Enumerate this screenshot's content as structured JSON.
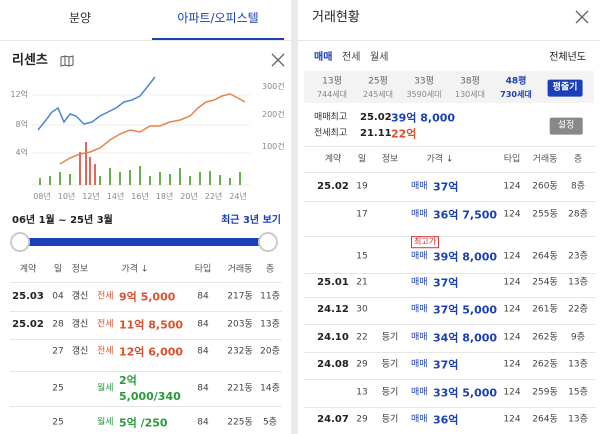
{
  "left": {
    "tabs": [
      "분양",
      "아파트/오피스텔"
    ],
    "complex": "리센츠",
    "chart": {
      "y_labels": [
        "12억",
        "8억",
        "4억"
      ],
      "y2_labels": [
        "300건",
        "200건",
        "100건"
      ],
      "x_labels": [
        "08년",
        "10년",
        "12년",
        "14년",
        "16년",
        "18년",
        "20년",
        "22년",
        "24년"
      ]
    },
    "period": "06년 1월 ~ 25년 3월",
    "recent": "최근 3년 보기",
    "table": {
      "headers": [
        "계약",
        "일",
        "정보",
        "가격 ↓",
        "타입",
        "거래동",
        "층"
      ],
      "rows": [
        {
          "date": "25.03",
          "day": "04",
          "info": "갱신",
          "kind": "전세",
          "price": "9억 5,000",
          "type": "84",
          "dong": "217동",
          "floor": "11층"
        },
        {
          "date": "25.02",
          "day": "28",
          "info": "갱신",
          "kind": "전세",
          "price": "11억 8,500",
          "type": "84",
          "dong": "203동",
          "floor": "13층"
        },
        {
          "day": "27",
          "info": "갱신",
          "kind": "전세",
          "price": "12억 6,000",
          "type": "84",
          "dong": "232동",
          "floor": "20층"
        },
        {
          "day": "25",
          "kind": "월세",
          "price": "2억 5,000/340",
          "type": "84",
          "dong": "221동",
          "floor": "14층"
        },
        {
          "day": "25",
          "kind": "월세",
          "price": "5억 /250",
          "type": "84",
          "dong": "225동",
          "floor": "5층"
        }
      ]
    }
  },
  "right": {
    "title": "거래현황",
    "deal_tabs": [
      "매매",
      "전세",
      "월세"
    ],
    "year": "전체년도",
    "sizes": [
      {
        "size": "13평",
        "units": "744세대"
      },
      {
        "size": "25평",
        "units": "245세대"
      },
      {
        "size": "33평",
        "units": "3590세대"
      },
      {
        "size": "38평",
        "units": "130세대"
      },
      {
        "size": "48평",
        "units": "730세대"
      }
    ],
    "button": "평줄기",
    "highs": [
      {
        "label": "매매최고",
        "date": "25.02",
        "price": "39억 8,000"
      },
      {
        "label": "전세최고",
        "date": "21.11",
        "price": "22억"
      }
    ],
    "settings": "설정",
    "table": {
      "headers": [
        "계약",
        "일",
        "정보",
        "가격 ↓",
        "타입",
        "거래동",
        "층"
      ],
      "rows": [
        {
          "date": "25.02",
          "day": "19",
          "kind": "매매",
          "price": "37억",
          "type": "124",
          "dong": "260동",
          "floor": "8층"
        },
        {
          "day": "17",
          "kind": "매매",
          "price": "36억 7,500",
          "type": "124",
          "dong": "255동",
          "floor": "28층"
        },
        {
          "day": "15",
          "badge": "최고가",
          "kind": "매매",
          "price": "39억 8,000",
          "type": "124",
          "dong": "264동",
          "floor": "23층"
        },
        {
          "date": "25.01",
          "day": "21",
          "kind": "매매",
          "price": "37억",
          "type": "124",
          "dong": "254동",
          "floor": "13층"
        },
        {
          "date": "24.12",
          "day": "30",
          "kind": "매매",
          "price": "37억 5,000",
          "type": "124",
          "dong": "261동",
          "floor": "22층"
        },
        {
          "date": "24.10",
          "day": "22",
          "info": "등기",
          "kind": "매매",
          "price": "34억 8,000",
          "type": "124",
          "dong": "262동",
          "floor": "9층"
        },
        {
          "date": "24.08",
          "day": "29",
          "info": "등기",
          "kind": "매매",
          "price": "37억",
          "type": "124",
          "dong": "262동",
          "floor": "13층"
        },
        {
          "day": "13",
          "info": "등기",
          "kind": "매매",
          "price": "33억 5,000",
          "type": "124",
          "dong": "259동",
          "floor": "15층"
        },
        {
          "date": "24.07",
          "day": "29",
          "info": "등기",
          "kind": "매매",
          "price": "36억",
          "type": "124",
          "dong": "264동",
          "floor": "13층"
        }
      ]
    }
  }
}
